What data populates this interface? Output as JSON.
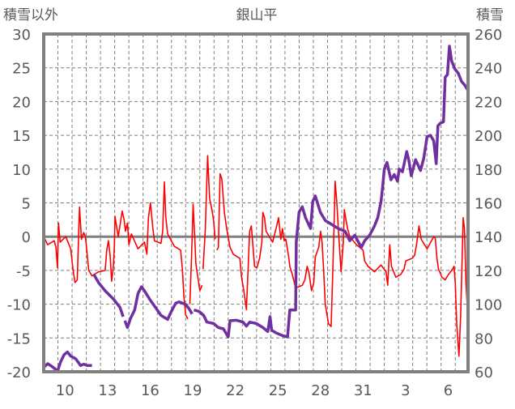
{
  "chart_data": {
    "type": "line",
    "title": "銀山平",
    "ylabel_left": "積雪以外",
    "ylabel_right": "積雪",
    "x_unit": "day index (Jan 9 = 9, Feb 1 = 32)",
    "xlim": [
      9,
      38.9
    ],
    "ylim_left": [
      -20,
      30
    ],
    "ylim_right": [
      60,
      260
    ],
    "yticks_left": [
      "30",
      "25",
      "20",
      "15",
      "10",
      "5",
      "0",
      "-5",
      "-10",
      "-15",
      "-20"
    ],
    "yticks_right": [
      "260",
      "240",
      "220",
      "200",
      "180",
      "160",
      "140",
      "120",
      "100",
      "80",
      "60"
    ],
    "xticks": [
      {
        "day": 10,
        "label": "10"
      },
      {
        "day": 13,
        "label": "13"
      },
      {
        "day": 16,
        "label": "16"
      },
      {
        "day": 19,
        "label": "19"
      },
      {
        "day": 22,
        "label": "22"
      },
      {
        "day": 25,
        "label": "25"
      },
      {
        "day": 28,
        "label": "28"
      },
      {
        "day": 31,
        "label": "31"
      },
      {
        "day": 34,
        "label": "3"
      },
      {
        "day": 37,
        "label": "6"
      }
    ],
    "grid": true,
    "colors": {
      "temperature": "#ff0000",
      "snow": "#7030a0",
      "frame": "#808080",
      "grid": "#7f7f7f"
    },
    "series": [
      {
        "name": "積雪以外",
        "axis": "left",
        "points": [
          [
            9.0,
            0
          ],
          [
            9.28,
            -1.2
          ],
          [
            9.74,
            -0.6
          ],
          [
            9.86,
            -1.6
          ],
          [
            9.97,
            -4.6
          ],
          [
            10.04,
            2.0
          ],
          [
            10.16,
            -0.8
          ],
          [
            10.55,
            0
          ],
          [
            10.9,
            -1.8
          ],
          [
            11.06,
            -4.8
          ],
          [
            11.2,
            -6.8
          ],
          [
            11.36,
            -6.4
          ],
          [
            11.52,
            4.4
          ],
          [
            11.66,
            -0.4
          ],
          [
            11.82,
            0.6
          ],
          [
            11.94,
            0
          ],
          [
            12.17,
            -5.0
          ],
          [
            12.4,
            -5.8
          ],
          [
            12.87,
            -5.2
          ],
          [
            13.33,
            -5.0
          ],
          [
            13.44,
            -2.0
          ],
          [
            13.56,
            -0.6
          ],
          [
            13.68,
            -2.8
          ],
          [
            13.79,
            -6.6
          ],
          [
            13.91,
            -4.4
          ],
          [
            13.98,
            -1.2
          ],
          [
            14.02,
            3.0
          ],
          [
            14.25,
            0
          ],
          [
            14.37,
            1.6
          ],
          [
            14.53,
            3.8
          ],
          [
            14.67,
            2.4
          ],
          [
            14.76,
            0.8
          ],
          [
            14.9,
            2.0
          ],
          [
            15.0,
            -1.2
          ],
          [
            15.18,
            0.4
          ],
          [
            15.64,
            -1.8
          ],
          [
            16.1,
            -0.8
          ],
          [
            16.27,
            -2.6
          ],
          [
            16.38,
            2.8
          ],
          [
            16.52,
            5.0
          ],
          [
            16.69,
            1.2
          ],
          [
            16.8,
            -0.6
          ],
          [
            17.26,
            -1.0
          ],
          [
            17.38,
            0.8
          ],
          [
            17.5,
            8.1
          ],
          [
            17.6,
            3.0
          ],
          [
            17.73,
            0.4
          ],
          [
            18.19,
            -1.4
          ],
          [
            18.65,
            -2.0
          ],
          [
            18.77,
            -4.8
          ],
          [
            18.88,
            -8.8
          ],
          [
            19.0,
            -11.6
          ],
          [
            19.16,
            -12.2
          ],
          null,
          [
            19.3,
            -10.0
          ],
          [
            19.42,
            -2.8
          ],
          [
            19.53,
            4.8
          ],
          [
            19.63,
            0.4
          ],
          [
            19.72,
            -4.0
          ],
          [
            19.86,
            -6.0
          ],
          [
            20.0,
            -8.0
          ],
          [
            20.16,
            -7.2
          ],
          null,
          [
            20.23,
            -4.8
          ],
          [
            20.39,
            1.2
          ],
          [
            20.55,
            12.0
          ],
          [
            20.69,
            5.6
          ],
          [
            20.85,
            4.0
          ],
          [
            20.97,
            2.4
          ],
          [
            21.08,
            -0.4
          ],
          null,
          [
            21.2,
            -2.0
          ],
          [
            21.31,
            -1.6
          ],
          [
            21.43,
            9.3
          ],
          [
            21.55,
            8.6
          ],
          [
            21.73,
            3.6
          ],
          [
            21.89,
            1.2
          ],
          [
            22.13,
            -1.6
          ],
          [
            22.36,
            -2.6
          ],
          [
            22.82,
            -3.2
          ],
          [
            22.94,
            -6.0
          ],
          [
            23.1,
            -8.0
          ],
          [
            23.28,
            -10.8
          ],
          [
            23.4,
            -4.8
          ],
          [
            23.51,
            0.8
          ],
          [
            23.63,
            1.6
          ],
          [
            23.75,
            -1.6
          ],
          [
            23.86,
            -4.4
          ],
          [
            24.02,
            -4.6
          ],
          [
            24.21,
            -3.2
          ],
          [
            24.37,
            -0.8
          ],
          [
            24.44,
            3.6
          ],
          [
            24.56,
            2.8
          ],
          [
            24.67,
            0.8
          ],
          [
            25.13,
            -0.8
          ],
          [
            25.37,
            1.2
          ],
          [
            25.55,
            2.8
          ],
          [
            25.71,
            -0.4
          ],
          [
            25.83,
            1.2
          ],
          [
            25.94,
            -0.6
          ],
          [
            26.06,
            -0.4
          ],
          [
            26.25,
            -2.8
          ],
          [
            26.34,
            -4.4
          ],
          [
            26.52,
            -5.6
          ],
          [
            26.75,
            -7.6
          ],
          [
            27.22,
            -7.2
          ],
          [
            27.4,
            -6.4
          ],
          [
            27.56,
            -4.4
          ],
          [
            27.68,
            -5.2
          ],
          [
            27.87,
            -8.0
          ],
          [
            28.03,
            -6.8
          ],
          [
            28.14,
            -3.0
          ],
          [
            28.38,
            -1.6
          ],
          [
            28.51,
            0.8
          ],
          [
            28.61,
            -0.8
          ],
          [
            28.72,
            -4.8
          ],
          [
            28.84,
            -10.0
          ],
          [
            29.07,
            -12.9
          ],
          [
            29.25,
            -13.3
          ],
          [
            29.35,
            -6.8
          ],
          [
            29.49,
            4.0
          ],
          [
            29.53,
            8.2
          ],
          [
            29.65,
            5.2
          ],
          [
            29.76,
            1.2
          ],
          [
            29.88,
            -2.8
          ],
          [
            29.95,
            -5.2
          ],
          [
            30.11,
            -0.8
          ],
          [
            30.18,
            4.0
          ],
          [
            30.27,
            2.8
          ],
          [
            30.41,
            1.2
          ],
          [
            30.57,
            0
          ],
          [
            31.04,
            -1.2
          ],
          [
            31.5,
            -2.0
          ],
          [
            31.62,
            -3.6
          ],
          [
            31.85,
            -4.4
          ],
          [
            32.31,
            -5.2
          ],
          [
            32.77,
            -4.2
          ],
          [
            33.12,
            -5.2
          ],
          [
            33.24,
            -7.2
          ],
          [
            33.38,
            -1.2
          ],
          [
            33.51,
            -4.4
          ],
          [
            33.81,
            -6.0
          ],
          [
            34.16,
            -5.6
          ],
          [
            34.39,
            -4.8
          ],
          [
            34.51,
            -3.6
          ],
          [
            34.97,
            -3.2
          ],
          [
            35.13,
            -2.8
          ],
          [
            35.27,
            -1.2
          ],
          [
            35.44,
            1.6
          ],
          [
            35.6,
            -0.4
          ],
          [
            36.01,
            -1.8
          ],
          [
            36.48,
            0
          ],
          [
            36.59,
            -0.2
          ],
          [
            36.71,
            -3.2
          ],
          [
            36.82,
            -4.8
          ],
          [
            37.06,
            -6.0
          ],
          [
            37.29,
            -6.4
          ],
          [
            37.52,
            -5.6
          ],
          [
            37.75,
            -5.0
          ],
          [
            37.91,
            -4.4
          ],
          [
            38.0,
            -6.8
          ],
          [
            38.1,
            -12.9
          ],
          [
            38.26,
            -17.7
          ],
          [
            38.38,
            -11.6
          ],
          [
            38.56,
            2.8
          ],
          [
            38.65,
            1.2
          ],
          [
            38.75,
            -6.8
          ],
          [
            38.84,
            -10.0
          ],
          [
            38.91,
            -11.6
          ]
        ]
      },
      {
        "name": "積雪",
        "axis": "right",
        "points": [
          [
            9.0,
            62.6
          ],
          [
            9.28,
            64.8
          ],
          [
            9.62,
            62.9
          ],
          [
            9.97,
            60.5
          ],
          [
            10.2,
            66
          ],
          [
            10.44,
            70.1
          ],
          [
            10.67,
            71.7
          ],
          [
            10.9,
            69.3
          ],
          [
            11.25,
            67.7
          ],
          [
            11.6,
            63.7
          ],
          [
            11.82,
            64.5
          ],
          [
            12.06,
            63.7
          ],
          [
            12.4,
            63.7
          ],
          null,
          [
            12.52,
            117.8
          ],
          [
            12.87,
            112.7
          ],
          [
            13.33,
            107.9
          ],
          [
            13.91,
            103.1
          ],
          [
            14.37,
            98.2
          ],
          [
            14.6,
            92.6
          ],
          null,
          [
            14.72,
            90.2
          ],
          [
            14.9,
            86.2
          ],
          [
            15.13,
            91.8
          ],
          [
            15.41,
            96.6
          ],
          [
            15.64,
            106.3
          ],
          [
            15.88,
            110.3
          ],
          [
            16.1,
            107.9
          ],
          [
            16.45,
            103.1
          ],
          [
            16.8,
            99.0
          ],
          [
            17.26,
            93.4
          ],
          [
            17.73,
            91.0
          ],
          [
            17.95,
            95.0
          ],
          [
            18.3,
            100.6
          ],
          [
            18.54,
            101.4
          ],
          [
            18.77,
            100.6
          ],
          [
            19.0,
            99.8
          ],
          [
            19.23,
            97.4
          ],
          [
            19.46,
            94.2
          ],
          null,
          [
            19.58,
            96.6
          ],
          [
            19.93,
            95.8
          ],
          [
            20.27,
            93.4
          ],
          [
            20.5,
            89.4
          ],
          [
            20.97,
            88.6
          ],
          [
            21.31,
            86.2
          ],
          [
            21.66,
            85.4
          ],
          [
            22.0,
            80.6
          ],
          [
            22.13,
            90.2
          ],
          [
            22.59,
            90.5
          ],
          [
            23.05,
            89.4
          ],
          [
            23.28,
            87.0
          ],
          [
            23.51,
            89.4
          ],
          [
            23.98,
            88.6
          ],
          [
            24.44,
            86.2
          ],
          [
            24.79,
            83.8
          ],
          [
            24.95,
            92.6
          ],
          [
            25.06,
            84.6
          ],
          [
            25.37,
            83.0
          ],
          [
            25.83,
            81.4
          ],
          [
            26.18,
            80.6
          ],
          [
            26.34,
            96.6
          ],
          [
            26.75,
            96.6
          ],
          [
            26.8,
            136.8
          ],
          [
            26.99,
            154.5
          ],
          [
            27.22,
            157.7
          ],
          [
            27.45,
            151.2
          ],
          [
            27.8,
            144.8
          ],
          [
            27.96,
            160.9
          ],
          [
            28.14,
            164.1
          ],
          [
            28.49,
            154.5
          ],
          [
            28.84,
            149.6
          ],
          [
            29.3,
            147.2
          ],
          [
            29.76,
            144.8
          ],
          [
            30.23,
            143.2
          ],
          [
            30.57,
            137.6
          ],
          [
            30.92,
            140.8
          ],
          [
            31.38,
            133.6
          ],
          [
            31.62,
            137.6
          ],
          [
            31.96,
            140.8
          ],
          [
            32.31,
            146.4
          ],
          [
            32.54,
            151.2
          ],
          [
            32.77,
            160.9
          ],
          [
            32.89,
            170.4
          ],
          [
            33.0,
            180
          ],
          [
            33.19,
            184
          ],
          [
            33.47,
            173.6
          ],
          [
            33.7,
            176.8
          ],
          [
            33.93,
            172.8
          ],
          [
            34.05,
            180
          ],
          [
            34.28,
            178.4
          ],
          [
            34.58,
            190.4
          ],
          [
            34.74,
            184.8
          ],
          [
            34.9,
            176
          ],
          [
            35.2,
            185.6
          ],
          [
            35.55,
            179.2
          ],
          [
            35.78,
            186.4
          ],
          [
            36.01,
            199.2
          ],
          [
            36.25,
            200
          ],
          [
            36.48,
            196.8
          ],
          [
            36.66,
            183.2
          ],
          [
            36.78,
            205.6
          ],
          [
            36.94,
            207.2
          ],
          [
            37.17,
            208
          ],
          [
            37.29,
            234.4
          ],
          [
            37.45,
            236
          ],
          [
            37.59,
            252.8
          ],
          [
            37.75,
            244
          ],
          [
            37.98,
            239.2
          ],
          [
            38.21,
            236.8
          ],
          [
            38.44,
            232
          ],
          [
            38.68,
            229.6
          ],
          [
            38.91,
            226.4
          ]
        ]
      }
    ]
  }
}
